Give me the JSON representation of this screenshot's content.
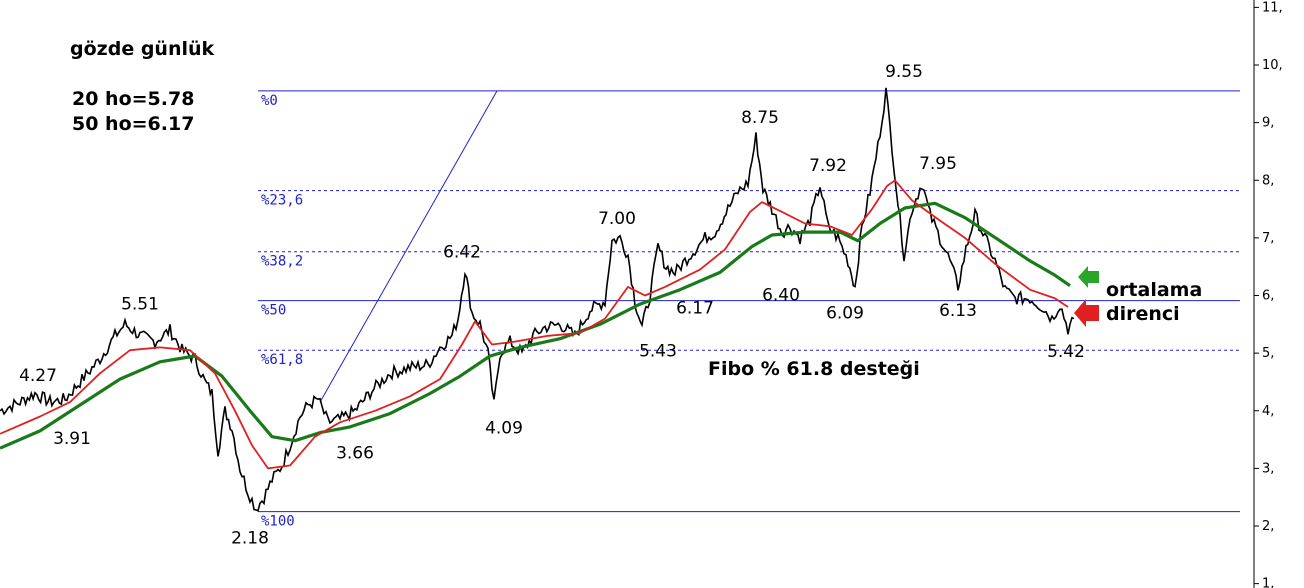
{
  "annotations": {
    "title": "gözde günlük",
    "ma20": "20 ho=5.78",
    "ma50": "50 ho=6.17",
    "fibo_support": "Fibo % 61.8 desteği",
    "resistance_line1": "ortalama",
    "resistance_line2": "direnci"
  },
  "colors": {
    "price": "#000000",
    "ma20": "#e02020",
    "ma50": "#1a7a1a",
    "fibo": "#2222cc",
    "arrow_green": "#2aa52a",
    "arrow_red": "#e02020"
  },
  "chart_data": {
    "type": "line",
    "y_axis": {
      "ticks": [
        "1,",
        "2,",
        "3,",
        "4,",
        "5,",
        "6,",
        "7,",
        "8,",
        "9,",
        "10,",
        "11,"
      ],
      "tick_values": [
        1,
        2,
        3,
        4,
        5,
        6,
        7,
        8,
        9,
        10,
        11
      ],
      "ylim": [
        1.0,
        11.2
      ],
      "position": "right"
    },
    "x_range": [
      0,
      1240
    ],
    "fibonacci": {
      "levels": [
        {
          "label": "%0",
          "value": 9.55
        },
        {
          "label": "%23,6",
          "value": 7.82
        },
        {
          "label": "%38,2",
          "value": 6.76
        },
        {
          "label": "%50",
          "value": 5.91
        },
        {
          "label": "%61,8",
          "value": 5.05
        },
        {
          "label": "%100",
          "value": 2.25
        }
      ],
      "line_start_x": 258,
      "line_end_x": 1240
    },
    "trendline": {
      "from": [
        320,
        4.15
      ],
      "to": [
        497,
        9.55
      ]
    },
    "price_points": [
      [
        0,
        4.0
      ],
      [
        20,
        4.15
      ],
      [
        35,
        4.3
      ],
      [
        50,
        4.15
      ],
      [
        65,
        4.2
      ],
      [
        80,
        4.5
      ],
      [
        100,
        4.9
      ],
      [
        115,
        5.3
      ],
      [
        125,
        5.5
      ],
      [
        140,
        5.3
      ],
      [
        155,
        5.2
      ],
      [
        170,
        5.4
      ],
      [
        182,
        5.05
      ],
      [
        195,
        4.9
      ],
      [
        205,
        4.5
      ],
      [
        212,
        4.3
      ],
      [
        218,
        3.3
      ],
      [
        225,
        4.0
      ],
      [
        232,
        3.7
      ],
      [
        240,
        3.0
      ],
      [
        248,
        2.6
      ],
      [
        256,
        2.3
      ],
      [
        264,
        2.5
      ],
      [
        272,
        2.8
      ],
      [
        282,
        3.05
      ],
      [
        292,
        3.5
      ],
      [
        300,
        3.9
      ],
      [
        308,
        4.1
      ],
      [
        318,
        4.2
      ],
      [
        328,
        3.8
      ],
      [
        340,
        3.85
      ],
      [
        355,
        4.0
      ],
      [
        372,
        4.35
      ],
      [
        390,
        4.65
      ],
      [
        410,
        4.75
      ],
      [
        428,
        4.8
      ],
      [
        440,
        5.1
      ],
      [
        452,
        5.3
      ],
      [
        458,
        5.6
      ],
      [
        465,
        6.45
      ],
      [
        472,
        5.7
      ],
      [
        480,
        5.5
      ],
      [
        488,
        5.0
      ],
      [
        494,
        4.1
      ],
      [
        500,
        5.0
      ],
      [
        510,
        5.2
      ],
      [
        522,
        5.0
      ],
      [
        533,
        5.3
      ],
      [
        545,
        5.45
      ],
      [
        560,
        5.5
      ],
      [
        575,
        5.3
      ],
      [
        590,
        5.75
      ],
      [
        605,
        5.9
      ],
      [
        612,
        6.95
      ],
      [
        620,
        7.0
      ],
      [
        628,
        6.7
      ],
      [
        635,
        5.9
      ],
      [
        642,
        5.45
      ],
      [
        650,
        6.0
      ],
      [
        658,
        6.85
      ],
      [
        666,
        6.5
      ],
      [
        675,
        6.4
      ],
      [
        685,
        6.6
      ],
      [
        695,
        6.8
      ],
      [
        705,
        7.0
      ],
      [
        715,
        7.1
      ],
      [
        728,
        7.5
      ],
      [
        738,
        7.8
      ],
      [
        748,
        7.95
      ],
      [
        756,
        8.75
      ],
      [
        763,
        7.85
      ],
      [
        772,
        7.5
      ],
      [
        782,
        7.1
      ],
      [
        790,
        7.2
      ],
      [
        800,
        7.0
      ],
      [
        810,
        7.3
      ],
      [
        820,
        7.92
      ],
      [
        828,
        7.2
      ],
      [
        838,
        7.0
      ],
      [
        848,
        6.6
      ],
      [
        855,
        6.15
      ],
      [
        862,
        7.2
      ],
      [
        870,
        7.8
      ],
      [
        878,
        8.6
      ],
      [
        886,
        9.55
      ],
      [
        892,
        8.6
      ],
      [
        898,
        7.6
      ],
      [
        904,
        6.7
      ],
      [
        912,
        7.5
      ],
      [
        922,
        7.95
      ],
      [
        930,
        7.4
      ],
      [
        940,
        7.0
      ],
      [
        950,
        6.6
      ],
      [
        958,
        6.15
      ],
      [
        966,
        6.8
      ],
      [
        975,
        7.4
      ],
      [
        985,
        7.0
      ],
      [
        995,
        6.6
      ],
      [
        1005,
        6.1
      ],
      [
        1015,
        5.95
      ],
      [
        1030,
        5.95
      ],
      [
        1042,
        5.8
      ],
      [
        1052,
        5.6
      ],
      [
        1060,
        5.85
      ],
      [
        1068,
        5.42
      ],
      [
        1074,
        5.6
      ]
    ],
    "ma20_points": [
      [
        0,
        3.6
      ],
      [
        40,
        3.9
      ],
      [
        70,
        4.15
      ],
      [
        100,
        4.65
      ],
      [
        130,
        5.05
      ],
      [
        160,
        5.1
      ],
      [
        190,
        5.05
      ],
      [
        215,
        4.65
      ],
      [
        235,
        4.0
      ],
      [
        252,
        3.4
      ],
      [
        268,
        3.0
      ],
      [
        290,
        3.05
      ],
      [
        315,
        3.55
      ],
      [
        340,
        3.8
      ],
      [
        375,
        4.0
      ],
      [
        410,
        4.25
      ],
      [
        440,
        4.55
      ],
      [
        462,
        5.15
      ],
      [
        475,
        5.55
      ],
      [
        492,
        5.15
      ],
      [
        515,
        5.2
      ],
      [
        548,
        5.3
      ],
      [
        580,
        5.35
      ],
      [
        605,
        5.6
      ],
      [
        628,
        6.15
      ],
      [
        645,
        6.0
      ],
      [
        665,
        6.15
      ],
      [
        700,
        6.45
      ],
      [
        725,
        6.8
      ],
      [
        750,
        7.45
      ],
      [
        762,
        7.62
      ],
      [
        782,
        7.45
      ],
      [
        805,
        7.25
      ],
      [
        830,
        7.2
      ],
      [
        852,
        7.05
      ],
      [
        872,
        7.5
      ],
      [
        887,
        7.9
      ],
      [
        895,
        8.0
      ],
      [
        912,
        7.65
      ],
      [
        940,
        7.3
      ],
      [
        965,
        7.0
      ],
      [
        995,
        6.55
      ],
      [
        1030,
        6.1
      ],
      [
        1055,
        5.95
      ],
      [
        1068,
        5.8
      ]
    ],
    "ma50_points": [
      [
        0,
        3.35
      ],
      [
        40,
        3.65
      ],
      [
        80,
        4.1
      ],
      [
        120,
        4.55
      ],
      [
        160,
        4.85
      ],
      [
        195,
        4.95
      ],
      [
        222,
        4.6
      ],
      [
        250,
        4.0
      ],
      [
        272,
        3.55
      ],
      [
        295,
        3.48
      ],
      [
        320,
        3.62
      ],
      [
        350,
        3.72
      ],
      [
        390,
        3.95
      ],
      [
        430,
        4.3
      ],
      [
        460,
        4.6
      ],
      [
        490,
        4.95
      ],
      [
        520,
        5.1
      ],
      [
        560,
        5.25
      ],
      [
        600,
        5.5
      ],
      [
        640,
        5.85
      ],
      [
        680,
        6.1
      ],
      [
        720,
        6.4
      ],
      [
        752,
        6.85
      ],
      [
        772,
        7.05
      ],
      [
        805,
        7.1
      ],
      [
        840,
        7.1
      ],
      [
        858,
        6.95
      ],
      [
        880,
        7.25
      ],
      [
        905,
        7.52
      ],
      [
        935,
        7.6
      ],
      [
        965,
        7.35
      ],
      [
        1000,
        6.95
      ],
      [
        1030,
        6.6
      ],
      [
        1055,
        6.35
      ],
      [
        1070,
        6.17
      ]
    ],
    "price_labels": [
      {
        "text": "4.27",
        "x": 38,
        "value": 4.27,
        "pos": "above"
      },
      {
        "text": "3.91",
        "x": 72,
        "value": 3.91,
        "pos": "below"
      },
      {
        "text": "5.51",
        "x": 140,
        "value": 5.51,
        "pos": "above"
      },
      {
        "text": "2.18",
        "x": 250,
        "value": 2.18,
        "pos": "below"
      },
      {
        "text": "3.66",
        "x": 355,
        "value": 3.66,
        "pos": "below"
      },
      {
        "text": "6.42",
        "x": 462,
        "value": 6.42,
        "pos": "above"
      },
      {
        "text": "4.09",
        "x": 504,
        "value": 4.09,
        "pos": "below"
      },
      {
        "text": "7.00",
        "x": 617,
        "value": 7.0,
        "pos": "above"
      },
      {
        "text": "5.43",
        "x": 658,
        "value": 5.43,
        "pos": "below"
      },
      {
        "text": "6.17",
        "x": 695,
        "value": 6.17,
        "pos": "below"
      },
      {
        "text": "8.75",
        "x": 760,
        "value": 8.75,
        "pos": "above"
      },
      {
        "text": "6.40",
        "x": 781,
        "value": 6.4,
        "pos": "below"
      },
      {
        "text": "7.92",
        "x": 828,
        "value": 7.92,
        "pos": "above"
      },
      {
        "text": "6.09",
        "x": 845,
        "value": 6.09,
        "pos": "below"
      },
      {
        "text": "9.55",
        "x": 904,
        "value": 9.55,
        "pos": "above"
      },
      {
        "text": "7.95",
        "x": 938,
        "value": 7.95,
        "pos": "above"
      },
      {
        "text": "6.13",
        "x": 958,
        "value": 6.13,
        "pos": "below"
      },
      {
        "text": "5.42",
        "x": 1066,
        "value": 5.42,
        "pos": "below"
      }
    ],
    "grid": false,
    "legend": "none"
  }
}
